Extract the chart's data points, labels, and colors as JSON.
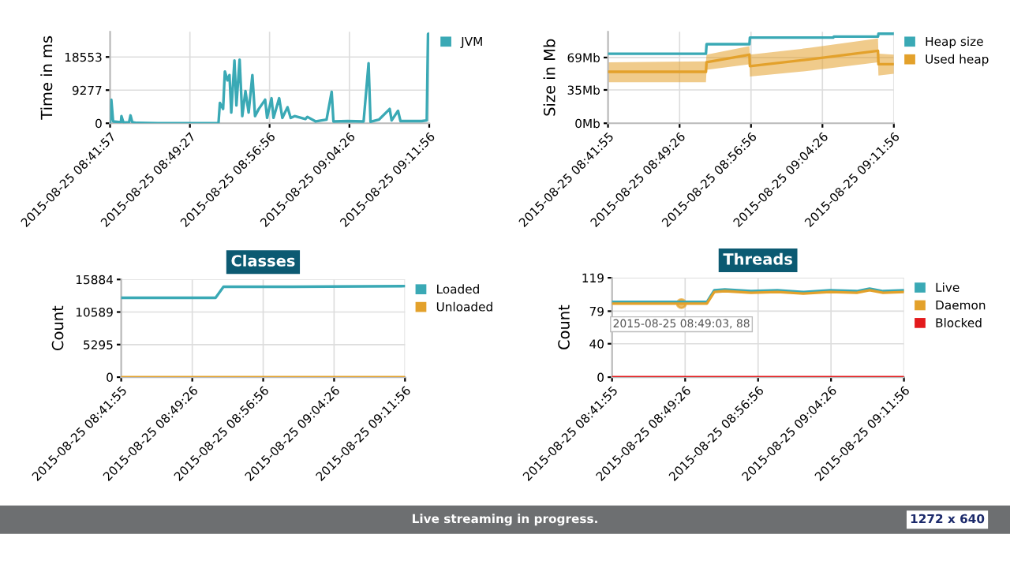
{
  "chart_data": [
    {
      "type": "line",
      "ylabel": "Time in ms",
      "legend": "right",
      "grid": true,
      "xlim": [
        "2015-08-25T08:41:57",
        "2015-08-25T09:11:56"
      ],
      "xticks": [
        {
          "value": "2015-08-25T08:41:57",
          "label": "2015-08-25 08:41:57"
        },
        {
          "value": "2015-08-25T08:49:27",
          "label": "2015-08-25 08:49:27"
        },
        {
          "value": "2015-08-25T08:56:56",
          "label": "2015-08-25 08:56:56"
        },
        {
          "value": "2015-08-25T09:04:26",
          "label": "2015-08-25 09:04:26"
        },
        {
          "value": "2015-08-25T09:11:56",
          "label": "2015-08-25 09:11:56"
        }
      ],
      "ylim": [
        0,
        25600
      ],
      "yticks": [
        0,
        9277,
        18553
      ],
      "series": [
        {
          "name": "JVM",
          "color": "#3aa9b5",
          "x": [
            "2015-08-25T08:41:57",
            "2015-08-25T08:42:04",
            "2015-08-25T08:42:14",
            "2015-08-25T08:42:58",
            "2015-08-25T08:43:01",
            "2015-08-25T08:43:12",
            "2015-08-25T08:43:44",
            "2015-08-25T08:43:52",
            "2015-08-25T08:44:02",
            "2015-08-25T08:44:28",
            "2015-08-25T08:46:26",
            "2015-08-25T08:52:08",
            "2015-08-25T08:52:16",
            "2015-08-25T08:52:34",
            "2015-08-25T08:52:44",
            "2015-08-25T08:52:59",
            "2015-08-25T08:53:10",
            "2015-08-25T08:53:20",
            "2015-08-25T08:53:38",
            "2015-08-25T08:53:49",
            "2015-08-25T08:54:07",
            "2015-08-25T08:54:22",
            "2015-08-25T08:54:40",
            "2015-08-25T08:54:58",
            "2015-08-25T08:55:19",
            "2015-08-25T08:55:34",
            "2015-08-25T08:55:55",
            "2015-08-25T08:56:31",
            "2015-08-25T08:56:42",
            "2015-08-25T08:57:07",
            "2015-08-25T08:57:18",
            "2015-08-25T08:57:50",
            "2015-08-25T08:58:08",
            "2015-08-25T08:58:37",
            "2015-08-25T08:58:55",
            "2015-08-25T08:59:17",
            "2015-08-25T09:00:18",
            "2015-08-25T09:00:29",
            "2015-08-25T09:01:16",
            "2015-08-25T09:02:17",
            "2015-08-25T09:02:46",
            "2015-08-25T09:02:56",
            "2015-08-25T09:04:16",
            "2015-08-25T09:05:46",
            "2015-08-25T09:06:14",
            "2015-08-25T09:06:25",
            "2015-08-25T09:07:12",
            "2015-08-25T09:08:13",
            "2015-08-25T09:08:24",
            "2015-08-25T09:09:00",
            "2015-08-25T09:09:14",
            "2015-08-25T09:11:13",
            "2015-08-25T09:11:42",
            "2015-08-25T09:11:49",
            "2015-08-25T09:11:56"
          ],
          "values": [
            0,
            6600,
            500,
            300,
            2000,
            200,
            300,
            2200,
            300,
            100,
            0,
            0,
            5700,
            4000,
            14500,
            12000,
            13500,
            3000,
            17600,
            5000,
            17800,
            2000,
            9000,
            3000,
            13500,
            2000,
            4000,
            6600,
            1500,
            7000,
            1500,
            7000,
            1500,
            4500,
            1500,
            2000,
            1200,
            1800,
            500,
            1000,
            8800,
            500,
            600,
            500,
            16800,
            400,
            1000,
            4000,
            800,
            3500,
            600,
            600,
            800,
            25000,
            25000
          ]
        }
      ]
    },
    {
      "type": "line",
      "ylabel": "Size in Mb",
      "legend": "right",
      "grid": true,
      "xlim": [
        "2015-08-25T08:41:55",
        "2015-08-25T09:11:56"
      ],
      "xticks": [
        {
          "value": "2015-08-25T08:41:55",
          "label": "2015-08-25 08:41:55"
        },
        {
          "value": "2015-08-25T08:49:26",
          "label": "2015-08-25 08:49:26"
        },
        {
          "value": "2015-08-25T08:56:56",
          "label": "2015-08-25 08:56:56"
        },
        {
          "value": "2015-08-25T09:04:26",
          "label": "2015-08-25 09:04:26"
        },
        {
          "value": "2015-08-25T09:11:56",
          "label": "2015-08-25 09:11:56"
        }
      ],
      "ylim": [
        0,
        96
      ],
      "yticks": [
        {
          "value": 0,
          "label": "0Mb"
        },
        {
          "value": 35,
          "label": "35Mb"
        },
        {
          "value": 69,
          "label": "69Mb"
        }
      ],
      "series": [
        {
          "name": "Heap size",
          "color": "#3aa9b5",
          "x": [
            "2015-08-25T08:41:55",
            "2015-08-25T08:52:12",
            "2015-08-25T08:52:16",
            "2015-08-25T08:56:46",
            "2015-08-25T08:56:49",
            "2015-08-25T09:05:35",
            "2015-08-25T09:05:38",
            "2015-08-25T09:10:16",
            "2015-08-25T09:10:19",
            "2015-08-25T09:11:56"
          ],
          "values": [
            73,
            73,
            83,
            83,
            90,
            90,
            91,
            91,
            94,
            94
          ]
        },
        {
          "name": "Used heap",
          "color": "#e3a12b",
          "x": [
            "2015-08-25T08:41:55",
            "2015-08-25T08:52:12",
            "2015-08-25T08:52:16",
            "2015-08-25T08:56:46",
            "2015-08-25T08:56:49",
            "2015-08-25T09:03:00",
            "2015-08-25T09:10:16",
            "2015-08-25T09:10:19",
            "2015-08-25T09:11:56"
          ],
          "values": [
            54,
            54,
            64,
            72,
            60,
            67,
            76,
            62,
            62
          ],
          "lower": [
            43,
            43,
            56,
            62,
            49,
            55,
            64,
            50,
            52
          ],
          "upper": [
            64,
            65,
            72,
            81,
            72,
            79,
            89,
            73,
            72
          ]
        }
      ]
    },
    {
      "type": "line",
      "title": "Classes",
      "ylabel": "Count",
      "legend": "right",
      "grid": true,
      "xlim": [
        "2015-08-25T08:41:55",
        "2015-08-25T09:11:56"
      ],
      "xticks": [
        {
          "value": "2015-08-25T08:41:55",
          "label": "2015-08-25 08:41:55"
        },
        {
          "value": "2015-08-25T08:49:26",
          "label": "2015-08-25 08:49:26"
        },
        {
          "value": "2015-08-25T08:56:56",
          "label": "2015-08-25 08:56:56"
        },
        {
          "value": "2015-08-25T09:04:26",
          "label": "2015-08-25 09:04:26"
        },
        {
          "value": "2015-08-25T09:11:56",
          "label": "2015-08-25 09:11:56"
        }
      ],
      "ylim": [
        0,
        15884
      ],
      "yticks": [
        0,
        5295,
        10589,
        15884
      ],
      "series": [
        {
          "name": "Loaded",
          "color": "#3aa9b5",
          "x": [
            "2015-08-25T08:41:55",
            "2015-08-25T08:51:54",
            "2015-08-25T08:52:44",
            "2015-08-25T09:00:00",
            "2015-08-25T09:11:56"
          ],
          "values": [
            12900,
            12900,
            14700,
            14700,
            14800
          ]
        },
        {
          "name": "Unloaded",
          "color": "#e3a12b",
          "x": [
            "2015-08-25T08:41:55",
            "2015-08-25T09:11:56"
          ],
          "values": [
            0,
            0
          ]
        }
      ]
    },
    {
      "type": "line",
      "title": "Threads",
      "ylabel": "Count",
      "legend": "right",
      "grid": true,
      "xlim": [
        "2015-08-25T08:41:55",
        "2015-08-25T09:11:56"
      ],
      "xticks": [
        {
          "value": "2015-08-25T08:41:55",
          "label": "2015-08-25 08:41:55"
        },
        {
          "value": "2015-08-25T08:49:26",
          "label": "2015-08-25 08:49:26"
        },
        {
          "value": "2015-08-25T08:56:56",
          "label": "2015-08-25 08:56:56"
        },
        {
          "value": "2015-08-25T09:04:26",
          "label": "2015-08-25 09:04:26"
        },
        {
          "value": "2015-08-25T09:11:56",
          "label": "2015-08-25 09:11:56"
        }
      ],
      "ylim": [
        0,
        119
      ],
      "yticks": [
        0,
        40,
        79,
        119
      ],
      "annotations": [
        {
          "text": "2015-08-25 08:49:03, 88",
          "x": "2015-08-25T08:49:03",
          "y": 88
        }
      ],
      "series": [
        {
          "name": "Live",
          "color": "#3aa9b5",
          "x": [
            "2015-08-25T08:41:55",
            "2015-08-25T08:51:40",
            "2015-08-25T08:52:26",
            "2015-08-25T08:53:31",
            "2015-08-25T08:56:13",
            "2015-08-25T08:58:55",
            "2015-08-25T09:01:37",
            "2015-08-25T09:04:19",
            "2015-08-25T09:07:05",
            "2015-08-25T09:08:24",
            "2015-08-25T09:09:47",
            "2015-08-25T09:11:56"
          ],
          "values": [
            90,
            90,
            104,
            105,
            103,
            104,
            102,
            104,
            103,
            106,
            103,
            104
          ]
        },
        {
          "name": "Daemon",
          "color": "#e3a12b",
          "x": [
            "2015-08-25T08:41:55",
            "2015-08-25T08:51:40",
            "2015-08-25T08:52:26",
            "2015-08-25T08:53:31",
            "2015-08-25T08:56:13",
            "2015-08-25T08:58:55",
            "2015-08-25T09:01:37",
            "2015-08-25T09:04:19",
            "2015-08-25T09:07:05",
            "2015-08-25T09:08:24",
            "2015-08-25T09:09:47",
            "2015-08-25T09:11:56"
          ],
          "values": [
            88,
            88,
            102,
            103,
            101,
            102,
            100,
            102,
            101,
            104,
            101,
            102
          ]
        },
        {
          "name": "Blocked",
          "color": "#e31a1c",
          "x": [
            "2015-08-25T08:41:55",
            "2015-08-25T09:11:56"
          ],
          "values": [
            0,
            0
          ]
        }
      ]
    },
    {
      "type": "other",
      "annotations": [
        "Live streaming in progress.",
        "1272 x 640"
      ]
    }
  ]
}
